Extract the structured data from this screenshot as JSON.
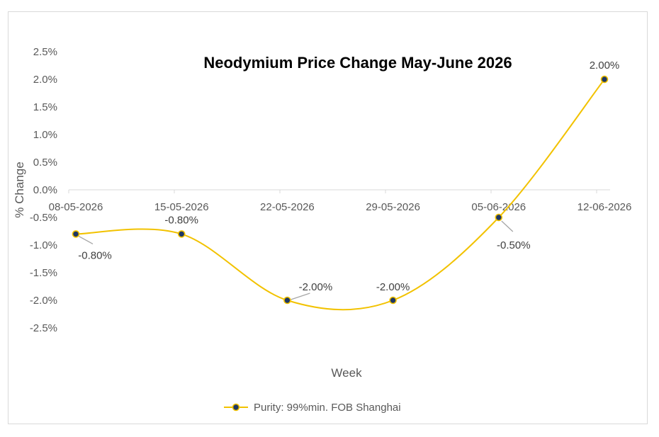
{
  "chart_data": {
    "type": "line",
    "title": "Neodymium Price Change May-June 2026",
    "xlabel": "Week",
    "ylabel": "% Change",
    "categories": [
      "08-05-2026",
      "15-05-2026",
      "22-05-2026",
      "29-05-2026",
      "05-06-2026",
      "12-06-2026"
    ],
    "series": [
      {
        "name": "Purity: 99%min. FOB Shanghai",
        "values": [
          -0.8,
          -0.8,
          -2.0,
          -2.0,
          -0.5,
          2.0
        ],
        "data_labels": [
          "-0.80%",
          "-0.80%",
          "-2.00%",
          "-2.00%",
          "-0.50%",
          "2.00%"
        ],
        "color": "#F2C200",
        "marker_color": "#1F3864",
        "smooth": true
      }
    ],
    "y_ticks": [
      "2.5%",
      "2.0%",
      "1.5%",
      "1.0%",
      "0.5%",
      "0.0%",
      "-0.5%",
      "-1.0%",
      "-1.5%",
      "-2.0%",
      "-2.5%"
    ],
    "ylim": [
      -2.5,
      2.5
    ],
    "grid": false,
    "legend_position": "bottom"
  }
}
